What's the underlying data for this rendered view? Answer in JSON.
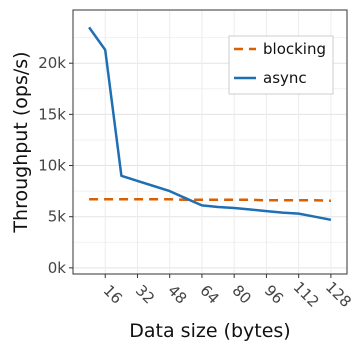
{
  "chart_data": {
    "type": "line",
    "title": "",
    "xlabel": "Data size (bytes)",
    "ylabel": "Throughput (ops/s)",
    "x_ticks": [
      16,
      32,
      48,
      64,
      80,
      96,
      112,
      128
    ],
    "x_tick_labels": [
      "16",
      "32",
      "48",
      "64",
      "80",
      "96",
      "112",
      "128"
    ],
    "y_ticks": [
      0,
      5000,
      10000,
      15000,
      20000
    ],
    "y_tick_labels": [
      "0k",
      "5k",
      "10k",
      "15k",
      "20k"
    ],
    "xlim": [
      0,
      136
    ],
    "ylim": [
      -600,
      25200
    ],
    "grid": true,
    "legend_position": "top-right",
    "series": [
      {
        "name": "blocking",
        "color": "#d95f02",
        "dash": "dashed",
        "x": [
          8,
          16,
          24,
          32,
          40,
          48,
          56,
          64,
          72,
          80,
          88,
          96,
          104,
          112,
          120,
          128
        ],
        "y": [
          6700,
          6700,
          6700,
          6700,
          6700,
          6700,
          6650,
          6650,
          6650,
          6650,
          6650,
          6600,
          6600,
          6600,
          6600,
          6550
        ]
      },
      {
        "name": "async",
        "color": "#1f6fb4",
        "dash": "solid",
        "x": [
          8,
          16,
          24,
          32,
          40,
          48,
          56,
          64,
          72,
          80,
          88,
          96,
          104,
          112,
          120,
          128
        ],
        "y": [
          23500,
          21300,
          9000,
          8500,
          8000,
          7500,
          6800,
          6100,
          5950,
          5850,
          5700,
          5550,
          5400,
          5300,
          5000,
          4700
        ]
      }
    ]
  }
}
